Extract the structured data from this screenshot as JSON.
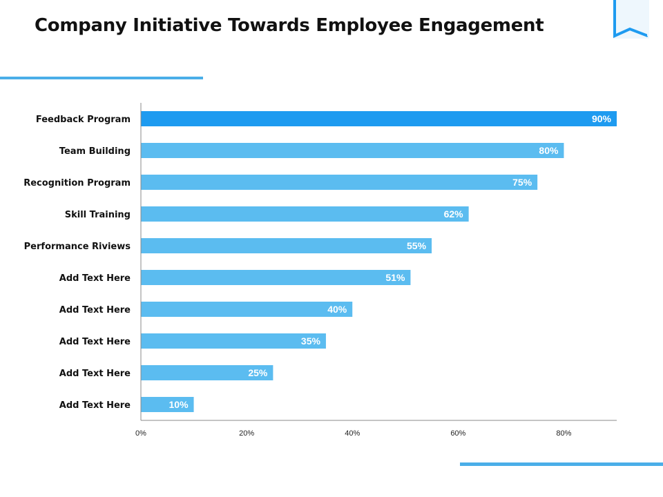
{
  "title": "Company Initiative Towards Employee Engagement",
  "colors": {
    "accent": "#4aaee8",
    "bar": "#5bbcf0",
    "bar_highlight": "#1e9bf0",
    "axis": "#888888"
  },
  "chart_data": {
    "type": "bar",
    "orientation": "horizontal",
    "categories": [
      "Feedback Program",
      "Team Building",
      "Recognition Program",
      "Skill Training",
      "Performance Riviews",
      "Add Text Here",
      "Add Text Here",
      "Add Text Here",
      "Add Text Here",
      "Add Text Here"
    ],
    "values": [
      90,
      80,
      75,
      62,
      55,
      51,
      40,
      35,
      25,
      10
    ],
    "value_labels": [
      "90%",
      "80%",
      "75%",
      "62%",
      "55%",
      "51%",
      "40%",
      "35%",
      "25%",
      "10%"
    ],
    "highlight_index": 0,
    "xlim": [
      0,
      90
    ],
    "xticks": [
      0,
      20,
      40,
      60,
      80
    ],
    "xtick_labels": [
      "0%",
      "20%",
      "40%",
      "60%",
      "80%"
    ],
    "grid": false,
    "legend": "none"
  }
}
